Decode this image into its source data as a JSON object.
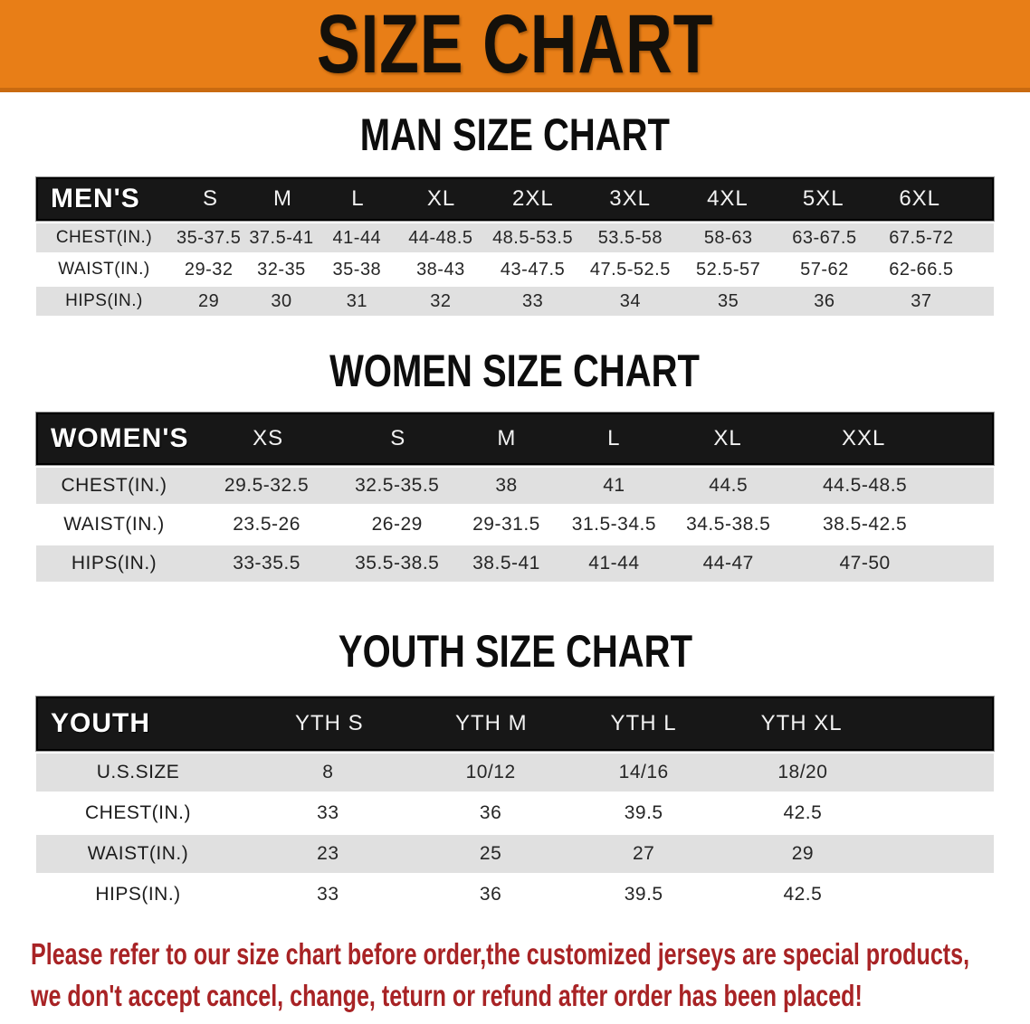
{
  "banner": {
    "title": "SIZE CHART"
  },
  "colors": {
    "banner_bg": "#E87E17",
    "banner_edge": "#C96A10",
    "header_bar": "#171717",
    "row_shade": "#E0E0E0",
    "disclaimer_red": "#A82325"
  },
  "sections": [
    {
      "id": "men",
      "title": "MAN SIZE CHART",
      "group_label": "MEN'S",
      "columns": [
        "S",
        "M",
        "L",
        "XL",
        "2XL",
        "3XL",
        "4XL",
        "5XL",
        "6XL"
      ],
      "rows": [
        {
          "label": "CHEST(IN.)",
          "values": [
            "35-37.5",
            "37.5-41",
            "41-44",
            "44-48.5",
            "48.5-53.5",
            "53.5-58",
            "58-63",
            "63-67.5",
            "67.5-72"
          ]
        },
        {
          "label": "WAIST(IN.)",
          "values": [
            "29-32",
            "32-35",
            "35-38",
            "38-43",
            "43-47.5",
            "47.5-52.5",
            "52.5-57",
            "57-62",
            "62-66.5"
          ]
        },
        {
          "label": "HIPS(IN.)",
          "values": [
            "29",
            "30",
            "31",
            "32",
            "33",
            "34",
            "35",
            "36",
            "37"
          ]
        }
      ]
    },
    {
      "id": "women",
      "title": "WOMEN SIZE CHART",
      "group_label": "WOMEN'S",
      "columns": [
        "XS",
        "S",
        "M",
        "L",
        "XL",
        "XXL"
      ],
      "rows": [
        {
          "label": "CHEST(IN.)",
          "values": [
            "29.5-32.5",
            "32.5-35.5",
            "38",
            "41",
            "44.5",
            "44.5-48.5"
          ]
        },
        {
          "label": "WAIST(IN.)",
          "values": [
            "23.5-26",
            "26-29",
            "29-31.5",
            "31.5-34.5",
            "34.5-38.5",
            "38.5-42.5"
          ]
        },
        {
          "label": "HIPS(IN.)",
          "values": [
            "33-35.5",
            "35.5-38.5",
            "38.5-41",
            "41-44",
            "44-47",
            "47-50"
          ]
        }
      ]
    },
    {
      "id": "youth",
      "title": "YOUTH SIZE CHART",
      "group_label": "YOUTH",
      "columns": [
        "YTH S",
        "YTH M",
        "YTH L",
        "YTH XL"
      ],
      "rows": [
        {
          "label": "U.S.SIZE",
          "values": [
            "8",
            "10/12",
            "14/16",
            "18/20"
          ]
        },
        {
          "label": "CHEST(IN.)",
          "values": [
            "33",
            "36",
            "39.5",
            "42.5"
          ]
        },
        {
          "label": "WAIST(IN.)",
          "values": [
            "23",
            "25",
            "27",
            "29"
          ]
        },
        {
          "label": "HIPS(IN.)",
          "values": [
            "33",
            "36",
            "39.5",
            "42.5"
          ]
        }
      ]
    }
  ],
  "disclaimer": {
    "lines": [
      "Please refer to our size chart before order,the customized jerseys are special products,",
      "we don't accept cancel, change, teturn or refund after order has been placed!"
    ]
  }
}
